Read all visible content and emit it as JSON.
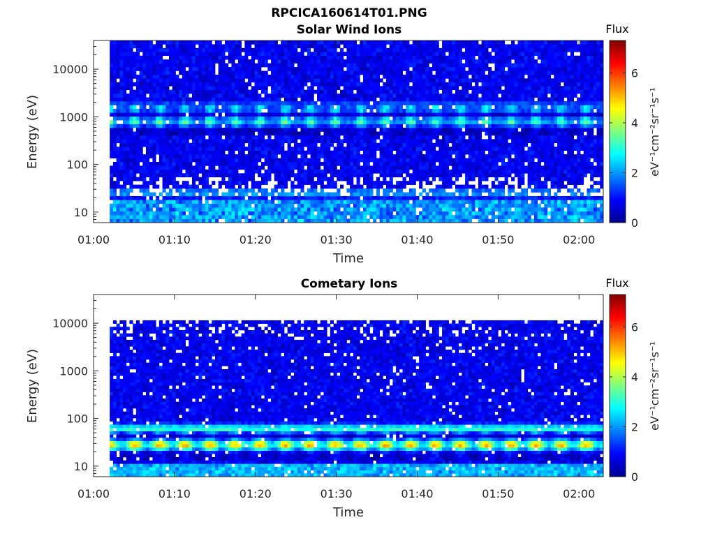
{
  "chart_data": [
    {
      "type": "heatmap",
      "figure_title": "RPCICA160614T01.PNG",
      "title": "Solar Wind Ions",
      "xlabel": "Time",
      "ylabel": "Energy (eV)",
      "x_ticks": [
        "01:00",
        "01:10",
        "01:20",
        "01:30",
        "01:40",
        "01:50",
        "02:00"
      ],
      "x_range": [
        "01:00",
        "02:03"
      ],
      "y_scale": "log",
      "y_ticks": [
        "10",
        "100",
        "1000",
        "10000"
      ],
      "y_range": [
        6,
        40000
      ],
      "data_start": "01:02",
      "data_end": "02:03",
      "colorbar": {
        "label": "Flux",
        "units": "eV⁻¹cm⁻²sr⁻¹s⁻¹",
        "ticks": [
          "0",
          "2",
          "4",
          "6"
        ],
        "range": [
          0,
          7.3
        ],
        "colormap": "jet"
      },
      "features": [
        {
          "energy_eV": 800,
          "flux_level": 3.5
        },
        {
          "energy_eV": 1500,
          "flux_level": 2.8
        },
        {
          "energy_eV": 12000,
          "flux_level": 0.8
        },
        {
          "energy_eV": 25,
          "flux_level": 2.0
        }
      ]
    },
    {
      "type": "heatmap",
      "title": "Cometary Ions",
      "xlabel": "Time",
      "ylabel": "Energy (eV)",
      "x_ticks": [
        "01:00",
        "01:10",
        "01:20",
        "01:30",
        "01:40",
        "01:50",
        "02:00"
      ],
      "x_range": [
        "01:00",
        "02:03"
      ],
      "y_scale": "log",
      "y_ticks": [
        "10",
        "100",
        "1000",
        "10000"
      ],
      "y_range": [
        6,
        40000
      ],
      "data_start": "01:02",
      "data_end": "02:03",
      "colorbar": {
        "label": "Flux",
        "units": "eV⁻¹cm⁻²sr⁻¹s⁻¹",
        "ticks": [
          "0",
          "2",
          "4",
          "6"
        ],
        "range": [
          0,
          7.3
        ],
        "colormap": "jet"
      },
      "features": [
        {
          "energy_eV": 28,
          "flux_level": 5.2
        },
        {
          "energy_eV": 60,
          "flux_level": 3.0
        },
        {
          "energy_eV": 10000,
          "flux_level": 0.5
        }
      ]
    }
  ]
}
